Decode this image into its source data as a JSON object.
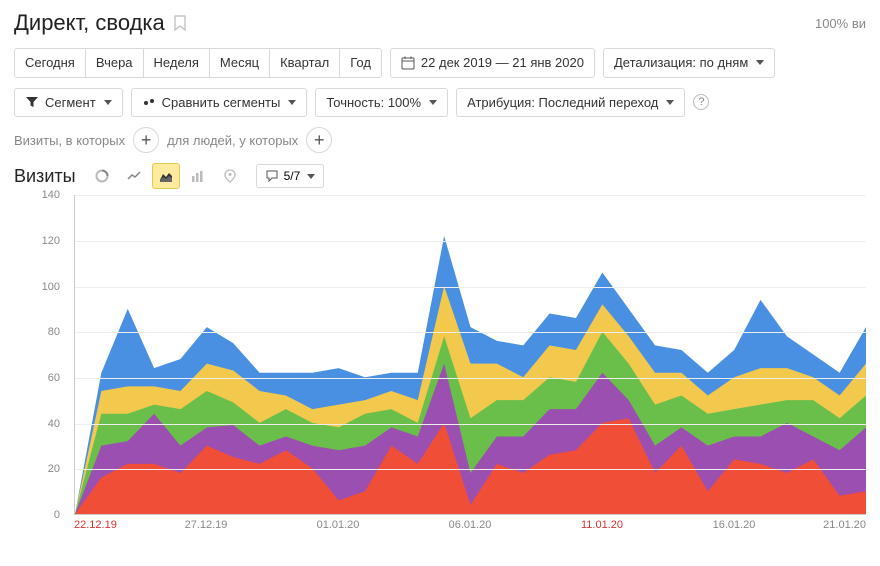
{
  "header": {
    "title": "Директ, сводка",
    "percent_label": "100% ви"
  },
  "period_tabs": [
    "Сегодня",
    "Вчера",
    "Неделя",
    "Месяц",
    "Квартал",
    "Год"
  ],
  "date_range": "22 дек 2019 — 21 янв 2020",
  "detail_label": "Детализация: по дням",
  "toolbar2": {
    "segment": "Сегмент",
    "compare": "Сравнить сегменты",
    "precision": "Точность: 100%",
    "attribution": "Атрибуция: Последний переход"
  },
  "filters": {
    "visits_label": "Визиты, в которых",
    "people_label": "для людей, у которых"
  },
  "chart_header": {
    "title": "Визиты",
    "counter": "5/7"
  },
  "chart": {
    "type": "stacked-area",
    "background_color": "#ffffff",
    "grid_color": "#eeeeee",
    "axis_color": "#cccccc",
    "label_color": "#888888",
    "label_fontsize": 11,
    "ylim": [
      0,
      140
    ],
    "ytick_step": 20,
    "x_count": 31,
    "x_labels": [
      {
        "i": 0,
        "text": "22.12.19",
        "red": true
      },
      {
        "i": 5,
        "text": "27.12.19",
        "red": false
      },
      {
        "i": 10,
        "text": "01.01.20",
        "red": false
      },
      {
        "i": 15,
        "text": "06.01.20",
        "red": false
      },
      {
        "i": 20,
        "text": "11.01.20",
        "red": true
      },
      {
        "i": 25,
        "text": "16.01.20",
        "red": false
      },
      {
        "i": 30,
        "text": "21.01.20",
        "red": false
      }
    ],
    "series": [
      {
        "name": "s1",
        "color": "#f04e37",
        "values": [
          0,
          16,
          22,
          22,
          18,
          30,
          25,
          22,
          28,
          20,
          6,
          10,
          30,
          22,
          40,
          4,
          22,
          18,
          26,
          28,
          40,
          42,
          18,
          30,
          10,
          24,
          22,
          18,
          24,
          8,
          10
        ]
      },
      {
        "name": "s2",
        "color": "#9b4fb0",
        "values": [
          0,
          14,
          10,
          22,
          12,
          8,
          14,
          8,
          6,
          10,
          22,
          20,
          8,
          12,
          26,
          14,
          12,
          16,
          20,
          18,
          22,
          8,
          12,
          8,
          20,
          10,
          12,
          22,
          10,
          20,
          28
        ]
      },
      {
        "name": "s3",
        "color": "#6abf4b",
        "values": [
          0,
          14,
          12,
          4,
          16,
          16,
          10,
          10,
          12,
          10,
          10,
          14,
          8,
          6,
          12,
          24,
          16,
          16,
          14,
          12,
          18,
          16,
          18,
          14,
          14,
          12,
          14,
          10,
          16,
          14,
          14
        ]
      },
      {
        "name": "s4",
        "color": "#f2c94c",
        "values": [
          0,
          10,
          12,
          8,
          8,
          12,
          14,
          14,
          6,
          6,
          10,
          6,
          8,
          10,
          22,
          24,
          16,
          10,
          14,
          14,
          12,
          12,
          14,
          10,
          8,
          14,
          16,
          14,
          10,
          10,
          14
        ]
      },
      {
        "name": "s5",
        "color": "#4a90e2",
        "values": [
          0,
          8,
          34,
          8,
          14,
          16,
          12,
          8,
          10,
          16,
          16,
          10,
          8,
          12,
          22,
          16,
          10,
          14,
          14,
          14,
          14,
          12,
          12,
          10,
          10,
          12,
          30,
          14,
          10,
          10,
          16
        ]
      }
    ]
  }
}
